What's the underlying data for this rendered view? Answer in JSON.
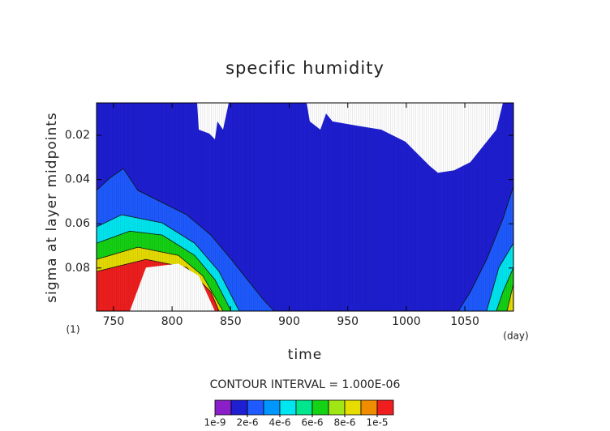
{
  "chart_data": {
    "type": "contour",
    "title": "specific humidity",
    "x_label": "time",
    "y_label": "sigma at layer midpoints",
    "x_unit": "(day)",
    "y_unit": "(1)",
    "contour_note": "CONTOUR INTERVAL = 1.000E-06",
    "xlim": [
      735.5,
      1091.5
    ],
    "ylim": [
      0.0053,
      0.0995
    ],
    "y_reversed": true,
    "xticks": [
      750,
      800,
      850,
      900,
      950,
      1000,
      1050
    ],
    "yticks": [
      0.02,
      0.04,
      0.06,
      0.08
    ],
    "levels": [
      1e-09,
      1e-06,
      2e-06,
      3e-06,
      4e-06,
      5e-06,
      6e-06,
      7e-06,
      8e-06,
      9e-06,
      1e-05
    ],
    "colors": [
      "#8a1ec8",
      "#1e1ed2",
      "#1e5aff",
      "#0096ff",
      "#00e6f0",
      "#00e68c",
      "#14d214",
      "#a0e614",
      "#e6dc00",
      "#f08c00",
      "#f01e1e",
      "#f0a0a0"
    ],
    "colorbar_ticks": [
      {
        "value": 1e-09,
        "label": "1e-9"
      },
      {
        "value": 2e-06,
        "label": "2e-6"
      },
      {
        "value": 4e-06,
        "label": "4e-6"
      },
      {
        "value": 6e-06,
        "label": "6e-6"
      },
      {
        "value": 8e-06,
        "label": "8e-6"
      },
      {
        "value": 1e-05,
        "label": "1e-5"
      }
    ],
    "regions": [
      {
        "value": 5e-07,
        "x": [
          735.5,
          1091.5,
          1091.5,
          735.5
        ],
        "y": [
          0.0053,
          0.0053,
          0.0995,
          0.0995
        ]
      },
      {
        "value": 1.5e-06,
        "x": [
          735.5,
          746.6,
          758.4,
          770.8,
          791.6,
          812.4,
          833.1,
          850.5,
          864.3,
          878.2,
          887.2,
          735.5
        ],
        "y": [
          0.0449,
          0.0394,
          0.035,
          0.0449,
          0.0504,
          0.0559,
          0.0651,
          0.0761,
          0.0853,
          0.0945,
          0.0995,
          0.0995
        ]
      },
      {
        "value": 3.5e-06,
        "x": [
          735.5,
          757,
          791.6,
          819.3,
          840.1,
          857.4,
          735.5
        ],
        "y": [
          0.0614,
          0.0559,
          0.0596,
          0.0688,
          0.0816,
          0.0995,
          0.0995
        ]
      },
      {
        "value": 5.5e-06,
        "x": [
          735.5,
          763.9,
          791.6,
          819.3,
          836.6,
          850.5,
          735.5
        ],
        "y": [
          0.0688,
          0.0633,
          0.0651,
          0.0743,
          0.0853,
          0.0995,
          0.0995
        ]
      },
      {
        "value": 7.5e-06,
        "x": [
          735.5,
          770.8,
          805.4,
          826.2,
          843.5,
          735.5
        ],
        "y": [
          0.0761,
          0.0706,
          0.0743,
          0.0835,
          0.0995,
          0.0995
        ]
      },
      {
        "value": 9.5e-06,
        "x": [
          735.5,
          777.7,
          812.4,
          833.1,
          840.1,
          735.5
        ],
        "y": [
          0.0816,
          0.0761,
          0.0798,
          0.0908,
          0.0995,
          0.0995
        ]
      },
      {
        "value": 1.5e-06,
        "x": [
          1091.5,
          1082.5,
          1068.6,
          1054.7,
          1044.4,
          1091.5
        ],
        "y": [
          0.0431,
          0.0578,
          0.0761,
          0.0908,
          0.0995,
          0.0995
        ]
      },
      {
        "value": 3.5e-06,
        "x": [
          1091.5,
          1079,
          1068.6,
          1091.5
        ],
        "y": [
          0.0688,
          0.0798,
          0.0995,
          0.0995
        ]
      },
      {
        "value": 5.5e-06,
        "x": [
          1091.5,
          1082.5,
          1076.9,
          1091.5
        ],
        "y": [
          0.0798,
          0.0908,
          0.0995,
          0.0995
        ]
      },
      {
        "value": 7.5e-06,
        "x": [
          1091.5,
          1086,
          1091.5
        ],
        "y": [
          0.0871,
          0.0995,
          0.0995
        ]
      }
    ],
    "blank_regions": [
      {
        "x": [
          763.9,
          777.7,
          805.4,
          822.8,
          836.6
        ],
        "y": [
          0.0995,
          0.0798,
          0.078,
          0.0835,
          0.0995
        ]
      },
      {
        "x": [
          821.4,
          822.8,
          831.8,
          836.6,
          838.7,
          843.5,
          848.4
        ],
        "y": [
          0.0053,
          0.0174,
          0.0192,
          0.0218,
          0.0137,
          0.0174,
          0.0053
        ]
      },
      {
        "x": [
          914.9,
          917.6,
          926.6,
          931.5,
          937,
          957.8,
          978.6,
          999.4,
          1009.7,
          1020.1,
          1027,
          1040.9,
          1054.7,
          1068.6,
          1076.9,
          1082.5
        ],
        "y": [
          0.0053,
          0.0137,
          0.0174,
          0.0101,
          0.0137,
          0.0156,
          0.0174,
          0.0229,
          0.0284,
          0.0339,
          0.0369,
          0.0358,
          0.0321,
          0.0229,
          0.0174,
          0.0053
        ]
      }
    ]
  }
}
